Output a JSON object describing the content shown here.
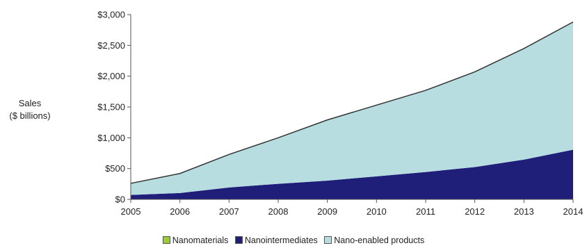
{
  "chart_data": {
    "type": "area",
    "stacked": true,
    "title": "",
    "ylabel_lines": [
      "Sales",
      "($ billions)"
    ],
    "xlabel": "",
    "categories": [
      "2005",
      "2006",
      "2007",
      "2008",
      "2009",
      "2010",
      "2011",
      "2012",
      "2013",
      "2014"
    ],
    "ylim": [
      0,
      3000
    ],
    "y_ticks": [
      {
        "value": 0,
        "label": "$0"
      },
      {
        "value": 500,
        "label": "$500"
      },
      {
        "value": 1000,
        "label": "$1,000"
      },
      {
        "value": 1500,
        "label": "$1,500"
      },
      {
        "value": 2000,
        "label": "$2,000"
      },
      {
        "value": 2500,
        "label": "$2,500"
      },
      {
        "value": 3000,
        "label": "$3,000"
      }
    ],
    "grid": false,
    "legend_position": "bottom",
    "series": [
      {
        "name": "Nanomaterials",
        "color": "#9acd32",
        "values": [
          2,
          3,
          3,
          3,
          4,
          4,
          4,
          5,
          5,
          6
        ]
      },
      {
        "name": "Nanointermediates",
        "color": "#1f1f7a",
        "values": [
          70,
          100,
          190,
          250,
          300,
          370,
          440,
          520,
          640,
          800
        ]
      },
      {
        "name": "Nano-enabled products",
        "color": "#b7dde0",
        "values": [
          188,
          317,
          537,
          747,
          986,
          1156,
          1326,
          1545,
          1805,
          2074
        ]
      }
    ]
  }
}
